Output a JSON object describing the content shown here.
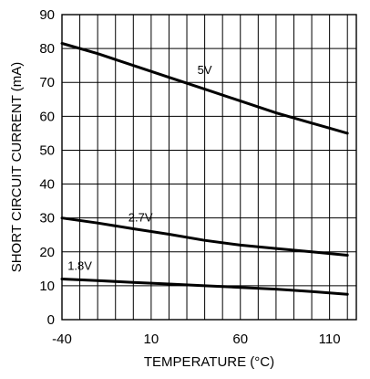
{
  "chart_data": {
    "type": "line",
    "title": "",
    "xlabel": "TEMPERATURE (°C)",
    "ylabel": "SHORT CIRCUIT CURRENT (mA)",
    "xlim": [
      -40,
      125
    ],
    "ylim": [
      0,
      90
    ],
    "x_ticks": [
      -40,
      10,
      60,
      110
    ],
    "x_tick_labels": [
      "-40",
      "10",
      "60",
      "110"
    ],
    "x_grid_step": 10,
    "y_ticks": [
      0,
      10,
      20,
      30,
      40,
      50,
      60,
      70,
      80,
      90
    ],
    "y_tick_labels": [
      "0",
      "10",
      "20",
      "30",
      "40",
      "50",
      "60",
      "70",
      "80",
      "90"
    ],
    "grid": true,
    "legend": "none",
    "series": [
      {
        "name": "5V",
        "x": [
          -40,
          -20,
          0,
          20,
          40,
          60,
          80,
          100,
          110,
          120
        ],
        "y": [
          81.5,
          78.5,
          75.0,
          71.5,
          68.0,
          64.5,
          61.0,
          58.0,
          56.5,
          55.0
        ]
      },
      {
        "name": "2.7V",
        "x": [
          -40,
          -20,
          0,
          20,
          40,
          60,
          80,
          100,
          120
        ],
        "y": [
          30.0,
          28.5,
          26.8,
          25.2,
          23.4,
          22.0,
          21.0,
          20.0,
          19.0
        ]
      },
      {
        "name": "1.8V",
        "x": [
          -40,
          -20,
          0,
          20,
          40,
          60,
          80,
          100,
          120
        ],
        "y": [
          12.0,
          11.5,
          11.0,
          10.5,
          10.0,
          9.5,
          9.0,
          8.3,
          7.5
        ]
      }
    ],
    "series_label_positions": {
      "5V": [
        40,
        72.5
      ],
      "2.7V": [
        4,
        29.0
      ],
      "1.8V": [
        -30,
        14.7
      ]
    },
    "colors": {
      "line": "#000000",
      "grid": "#000000",
      "background": "#ffffff"
    }
  }
}
